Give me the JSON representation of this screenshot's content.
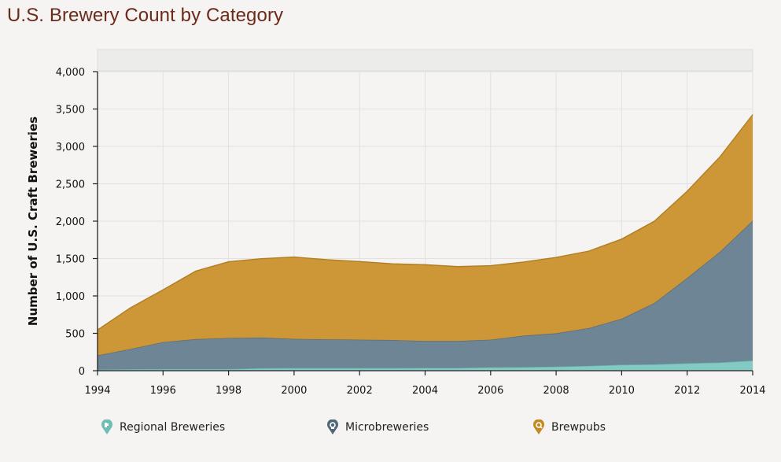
{
  "title": "U.S. Brewery Count by Category",
  "colors": {
    "regional": "#7fc9c1",
    "micro": "#6b8394",
    "brewpubs": "#cc9534",
    "title": "#6b2a1a"
  },
  "legend": [
    {
      "label": "Regional Breweries",
      "icon": "regional-breweries-pin-icon",
      "color": "#6fbdb3"
    },
    {
      "label": "Microbreweries",
      "icon": "microbreweries-pin-icon",
      "color": "#4f6878"
    },
    {
      "label": "Brewpubs",
      "icon": "brewpubs-pin-icon",
      "color": "#c48a22"
    }
  ],
  "chart_data": {
    "type": "area",
    "stacked": true,
    "title": "U.S. Brewery Count by Category",
    "ylabel": "Number of U.S. Craft Breweries",
    "xlabel": "",
    "ylim": [
      0,
      4000
    ],
    "xlim": [
      1994,
      2014
    ],
    "y_ticks": [
      "0",
      "500",
      "1,000",
      "1,500",
      "2,000",
      "2,500",
      "3,000",
      "3,500",
      "4,000"
    ],
    "y_tick_values": [
      0,
      500,
      1000,
      1500,
      2000,
      2500,
      3000,
      3500,
      4000
    ],
    "x_ticks": [
      "1994",
      "1996",
      "1998",
      "2000",
      "2002",
      "2004",
      "2006",
      "2008",
      "2010",
      "2012",
      "2014"
    ],
    "x_tick_values": [
      1994,
      1996,
      1998,
      2000,
      2002,
      2004,
      2006,
      2008,
      2010,
      2012,
      2014
    ],
    "grid": true,
    "legend_position": "bottom",
    "x": [
      1994,
      1995,
      1996,
      1997,
      1998,
      1999,
      2000,
      2001,
      2002,
      2003,
      2004,
      2005,
      2006,
      2007,
      2008,
      2009,
      2010,
      2011,
      2012,
      2013,
      2014
    ],
    "series": [
      {
        "name": "Regional Breweries",
        "color": "#7fc9c1",
        "values": [
          15,
          20,
          22,
          22,
          22,
          33,
          35,
          35,
          35,
          35,
          37,
          37,
          45,
          48,
          55,
          65,
          80,
          85,
          100,
          110,
          135
        ]
      },
      {
        "name": "Microbreweries",
        "color": "#6b8394",
        "values": [
          190,
          270,
          360,
          400,
          415,
          410,
          390,
          385,
          380,
          375,
          360,
          360,
          370,
          420,
          445,
          505,
          615,
          820,
          1140,
          1480,
          1870
        ]
      },
      {
        "name": "Brewpubs",
        "color": "#cc9534",
        "values": [
          340,
          550,
          700,
          910,
          1020,
          1055,
          1095,
          1065,
          1045,
          1020,
          1020,
          995,
          990,
          985,
          1015,
          1030,
          1065,
          1095,
          1160,
          1270,
          1420
        ]
      }
    ]
  }
}
